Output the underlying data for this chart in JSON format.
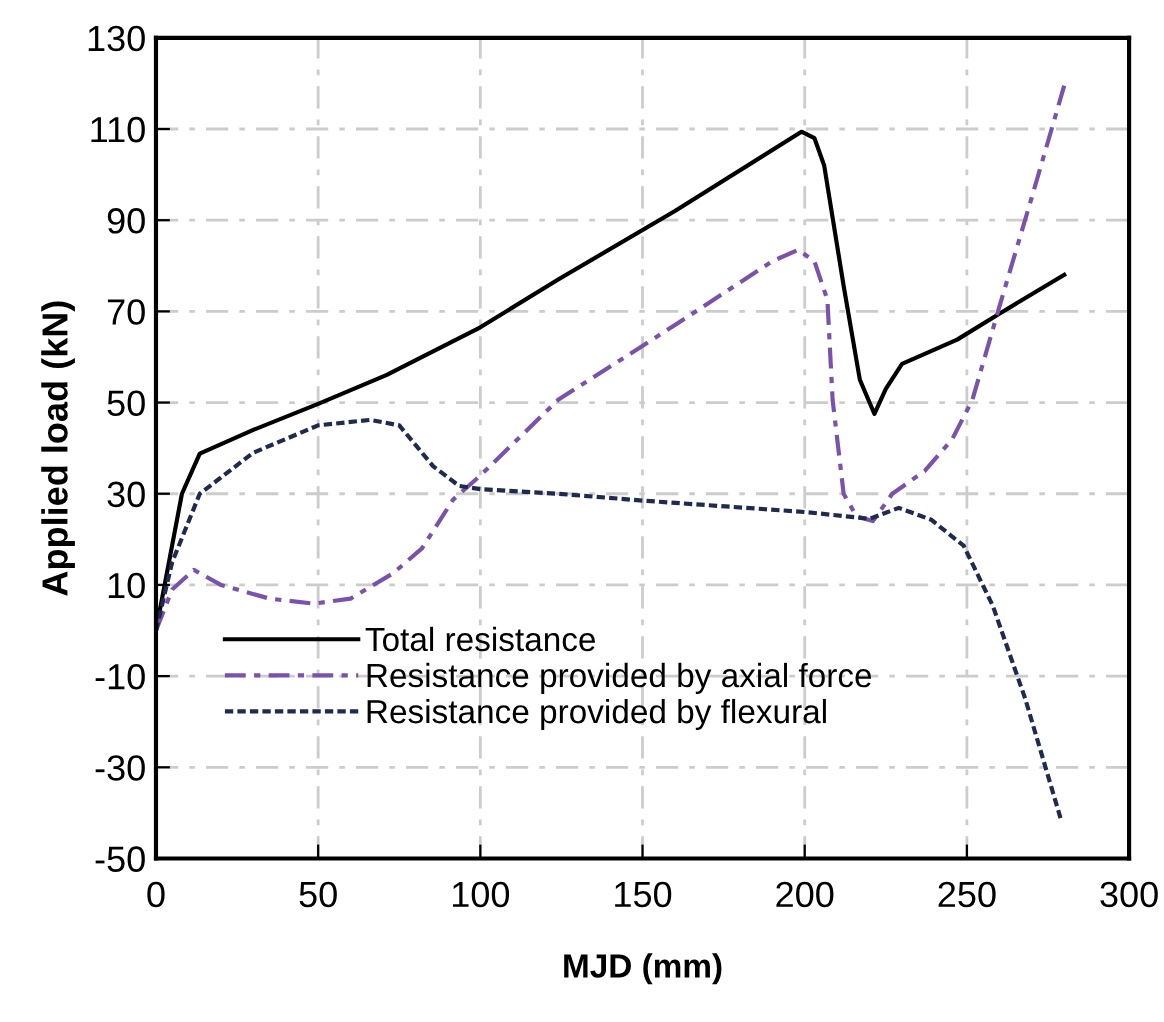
{
  "chart_data": {
    "type": "line",
    "xlabel": "MJD (mm)",
    "ylabel": "Applied load (kN)",
    "xlim": [
      0,
      300
    ],
    "xticks": [
      0,
      50,
      100,
      150,
      200,
      250,
      300
    ],
    "ylim": [
      -50,
      130
    ],
    "yticks": [
      -50,
      -30,
      -10,
      10,
      30,
      50,
      70,
      90,
      110,
      130
    ],
    "grid": true,
    "legend": "bottom left",
    "marker": "none",
    "series": [
      {
        "name": "Total resistance",
        "color": "#000000",
        "line_style": "solid",
        "x": [
          0,
          4,
          8,
          13.5,
          30,
          50,
          71,
          100,
          124,
          160,
          199,
          203,
          206,
          212,
          217,
          221.5,
          225,
          230,
          247,
          260,
          280
        ],
        "values": [
          0,
          15,
          30,
          38.8,
          44,
          49.7,
          56,
          66.5,
          77,
          92,
          109.4,
          108,
          102,
          75.6,
          55,
          47.5,
          53,
          58.5,
          63.8,
          69.5,
          78
        ]
      },
      {
        "name": "Resistance provided by axial force",
        "color": "#7b52ab",
        "line_style": "dashdot",
        "x": [
          0,
          5,
          11.7,
          20,
          35,
          48.6,
          60,
          73,
          82,
          91.6,
          100,
          124,
          160,
          190,
          198,
          203,
          207,
          208.6,
          212,
          216,
          221,
          227,
          237,
          245.5,
          251.7,
          260,
          270,
          280
        ],
        "values": [
          0,
          9,
          13.3,
          10,
          7,
          5.9,
          7,
          12.5,
          18,
          28.7,
          34,
          50.6,
          67,
          81,
          83.5,
          81,
          72.5,
          50.6,
          30,
          25,
          24,
          30,
          35,
          42,
          50.6,
          71,
          95,
          119.5
        ]
      },
      {
        "name": "Resistance provided by flexural",
        "color": "#1f2a4f",
        "line_style": "dotted",
        "x": [
          0,
          5,
          13.5,
          30,
          50,
          66,
          75,
          85.5,
          93.5,
          100,
          124,
          150,
          200,
          220,
          229,
          239,
          249,
          258,
          268,
          279
        ],
        "values": [
          0,
          15,
          30,
          39,
          45,
          46.2,
          45,
          36,
          31.7,
          31,
          30,
          28.5,
          26,
          24.5,
          26.9,
          24.3,
          18.6,
          5.4,
          -15,
          -41.5
        ]
      }
    ]
  }
}
